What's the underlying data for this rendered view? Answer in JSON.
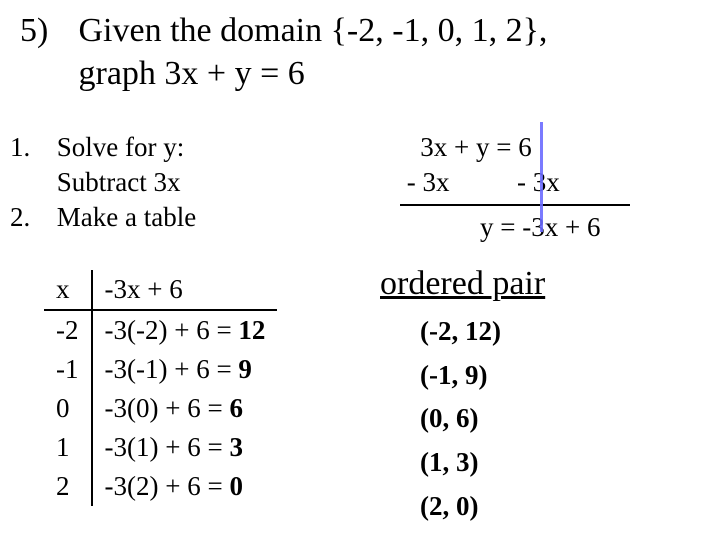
{
  "problem": {
    "number": "5)",
    "text_line1": "Given the domain {-2, -1, 0, 1, 2},",
    "text_line2": "graph 3x + y = 6"
  },
  "steps": {
    "s1_num": "1.",
    "s1_text": "Solve for y:",
    "s1_sub": "Subtract 3x",
    "s2_num": "2.",
    "s2_text": "Make a table"
  },
  "solve": {
    "line1": "   3x + y = 6",
    "line2": " - 3x          - 3x",
    "result": "y = -3x + 6"
  },
  "table": {
    "hx": "x",
    "hexpr": "-3x + 6",
    "rows": [
      {
        "x": "-2",
        "expr_prefix": "-3(-2) + 6 = ",
        "expr_bold": "12"
      },
      {
        "x": "-1",
        "expr_prefix": "-3(-1) + 6 = ",
        "expr_bold": "9"
      },
      {
        "x": "0",
        "expr_prefix": "-3(0) + 6 = ",
        "expr_bold": "6"
      },
      {
        "x": "1",
        "expr_prefix": "-3(1) + 6 = ",
        "expr_bold": "3"
      },
      {
        "x": "2",
        "expr_prefix": "-3(2) + 6 = ",
        "expr_bold": "0"
      }
    ]
  },
  "ordered": {
    "heading": "ordered pair",
    "pairs": [
      "(-2, 12)",
      "(-1, 9)",
      "(0, 6)",
      "(1, 3)",
      "(2, 0)"
    ]
  },
  "colors": {
    "text": "#000000",
    "background": "#ffffff",
    "cursor": "#6b6bff"
  }
}
